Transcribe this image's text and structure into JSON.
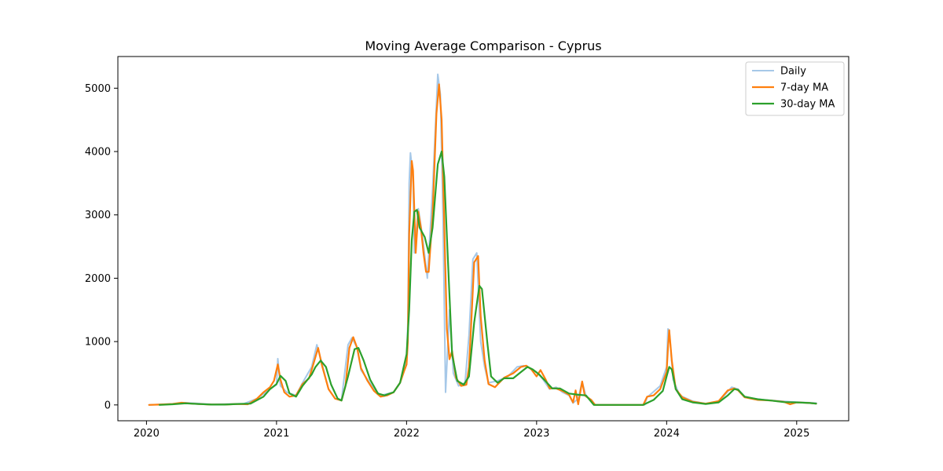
{
  "chart_data": {
    "type": "line",
    "title": "Moving Average Comparison - Cyprus",
    "xlabel": "",
    "ylabel": "",
    "x_ticks": [
      "2020",
      "2021",
      "2022",
      "2023",
      "2024",
      "2025"
    ],
    "y_ticks": [
      "0",
      "1000",
      "2000",
      "3000",
      "4000",
      "5000"
    ],
    "xlim": [
      2019.78,
      2025.4
    ],
    "ylim": [
      -250,
      5500
    ],
    "grid": false,
    "legend_position": "top-right",
    "series": [
      {
        "name": "Daily",
        "color": "#a6c8e8",
        "points": [
          [
            2020.02,
            0
          ],
          [
            2020.2,
            15
          ],
          [
            2020.3,
            35
          ],
          [
            2020.5,
            10
          ],
          [
            2020.75,
            20
          ],
          [
            2020.85,
            100
          ],
          [
            2020.95,
            250
          ],
          [
            2021.0,
            320
          ],
          [
            2021.01,
            730
          ],
          [
            2021.03,
            300
          ],
          [
            2021.08,
            200
          ],
          [
            2021.15,
            150
          ],
          [
            2021.2,
            350
          ],
          [
            2021.27,
            600
          ],
          [
            2021.31,
            950
          ],
          [
            2021.35,
            650
          ],
          [
            2021.4,
            250
          ],
          [
            2021.45,
            100
          ],
          [
            2021.5,
            80
          ],
          [
            2021.55,
            950
          ],
          [
            2021.58,
            1060
          ],
          [
            2021.62,
            900
          ],
          [
            2021.65,
            550
          ],
          [
            2021.7,
            400
          ],
          [
            2021.75,
            250
          ],
          [
            2021.8,
            150
          ],
          [
            2021.9,
            200
          ],
          [
            2021.95,
            350
          ],
          [
            2021.98,
            550
          ],
          [
            2022.0,
            700
          ],
          [
            2022.01,
            1300
          ],
          [
            2022.02,
            3500
          ],
          [
            2022.03,
            3980
          ],
          [
            2022.05,
            3600
          ],
          [
            2022.06,
            2400
          ],
          [
            2022.09,
            3100
          ],
          [
            2022.12,
            2700
          ],
          [
            2022.16,
            2000
          ],
          [
            2022.2,
            3400
          ],
          [
            2022.24,
            5220
          ],
          [
            2022.26,
            4900
          ],
          [
            2022.28,
            3000
          ],
          [
            2022.3,
            200
          ],
          [
            2022.33,
            1500
          ],
          [
            2022.36,
            500
          ],
          [
            2022.4,
            300
          ],
          [
            2022.45,
            350
          ],
          [
            2022.48,
            1100
          ],
          [
            2022.51,
            2300
          ],
          [
            2022.54,
            2400
          ],
          [
            2022.57,
            1000
          ],
          [
            2022.6,
            600
          ],
          [
            2022.63,
            350
          ],
          [
            2022.7,
            380
          ],
          [
            2022.78,
            450
          ],
          [
            2022.85,
            600
          ],
          [
            2022.9,
            620
          ],
          [
            2022.95,
            580
          ],
          [
            2023.0,
            520
          ],
          [
            2023.05,
            400
          ],
          [
            2023.1,
            250
          ],
          [
            2023.15,
            280
          ],
          [
            2023.2,
            200
          ],
          [
            2023.25,
            150
          ],
          [
            2023.28,
            30
          ],
          [
            2023.32,
            100
          ],
          [
            2023.35,
            370
          ],
          [
            2023.38,
            130
          ],
          [
            2023.42,
            80
          ],
          [
            2023.45,
            0
          ],
          [
            2023.6,
            0
          ],
          [
            2023.83,
            0
          ],
          [
            2023.85,
            120
          ],
          [
            2023.95,
            300
          ],
          [
            2024.0,
            600
          ],
          [
            2024.01,
            1200
          ],
          [
            2024.02,
            1180
          ],
          [
            2024.05,
            400
          ],
          [
            2024.1,
            150
          ],
          [
            2024.2,
            60
          ],
          [
            2024.3,
            20
          ],
          [
            2024.4,
            50
          ],
          [
            2024.5,
            280
          ],
          [
            2024.55,
            250
          ],
          [
            2024.6,
            120
          ],
          [
            2024.75,
            80
          ],
          [
            2024.95,
            50
          ],
          [
            2025.05,
            40
          ],
          [
            2025.15,
            30
          ]
        ]
      },
      {
        "name": "7-day MA",
        "color": "#ff7f0e",
        "points": [
          [
            2020.02,
            0
          ],
          [
            2020.1,
            5
          ],
          [
            2020.2,
            15
          ],
          [
            2020.27,
            35
          ],
          [
            2020.35,
            20
          ],
          [
            2020.5,
            5
          ],
          [
            2020.6,
            5
          ],
          [
            2020.7,
            15
          ],
          [
            2020.78,
            10
          ],
          [
            2020.85,
            100
          ],
          [
            2020.9,
            200
          ],
          [
            2020.95,
            280
          ],
          [
            2020.98,
            380
          ],
          [
            2021.01,
            640
          ],
          [
            2021.03,
            400
          ],
          [
            2021.06,
            200
          ],
          [
            2021.1,
            130
          ],
          [
            2021.15,
            150
          ],
          [
            2021.2,
            330
          ],
          [
            2021.25,
            420
          ],
          [
            2021.28,
            620
          ],
          [
            2021.32,
            900
          ],
          [
            2021.35,
            620
          ],
          [
            2021.4,
            250
          ],
          [
            2021.45,
            100
          ],
          [
            2021.5,
            70
          ],
          [
            2021.53,
            300
          ],
          [
            2021.56,
            900
          ],
          [
            2021.59,
            1070
          ],
          [
            2021.62,
            900
          ],
          [
            2021.65,
            580
          ],
          [
            2021.7,
            380
          ],
          [
            2021.75,
            220
          ],
          [
            2021.8,
            130
          ],
          [
            2021.85,
            150
          ],
          [
            2021.9,
            200
          ],
          [
            2021.95,
            350
          ],
          [
            2021.98,
            530
          ],
          [
            2022.0,
            640
          ],
          [
            2022.01,
            1000
          ],
          [
            2022.02,
            2700
          ],
          [
            2022.04,
            3850
          ],
          [
            2022.05,
            3700
          ],
          [
            2022.07,
            2400
          ],
          [
            2022.09,
            3050
          ],
          [
            2022.11,
            2800
          ],
          [
            2022.13,
            2400
          ],
          [
            2022.15,
            2100
          ],
          [
            2022.17,
            2100
          ],
          [
            2022.2,
            3000
          ],
          [
            2022.23,
            4600
          ],
          [
            2022.25,
            5060
          ],
          [
            2022.27,
            4500
          ],
          [
            2022.29,
            2800
          ],
          [
            2022.31,
            1200
          ],
          [
            2022.33,
            720
          ],
          [
            2022.35,
            850
          ],
          [
            2022.38,
            430
          ],
          [
            2022.42,
            300
          ],
          [
            2022.46,
            320
          ],
          [
            2022.48,
            600
          ],
          [
            2022.5,
            1400
          ],
          [
            2022.52,
            2250
          ],
          [
            2022.55,
            2350
          ],
          [
            2022.57,
            1400
          ],
          [
            2022.6,
            700
          ],
          [
            2022.63,
            330
          ],
          [
            2022.68,
            280
          ],
          [
            2022.75,
            430
          ],
          [
            2022.82,
            500
          ],
          [
            2022.88,
            600
          ],
          [
            2022.92,
            620
          ],
          [
            2022.96,
            560
          ],
          [
            2023.0,
            450
          ],
          [
            2023.03,
            550
          ],
          [
            2023.07,
            400
          ],
          [
            2023.1,
            260
          ],
          [
            2023.15,
            260
          ],
          [
            2023.2,
            220
          ],
          [
            2023.25,
            160
          ],
          [
            2023.28,
            40
          ],
          [
            2023.3,
            230
          ],
          [
            2023.32,
            10
          ],
          [
            2023.35,
            370
          ],
          [
            2023.37,
            150
          ],
          [
            2023.42,
            80
          ],
          [
            2023.45,
            0
          ],
          [
            2023.6,
            0
          ],
          [
            2023.82,
            0
          ],
          [
            2023.85,
            130
          ],
          [
            2023.9,
            150
          ],
          [
            2023.95,
            250
          ],
          [
            2024.0,
            520
          ],
          [
            2024.01,
            900
          ],
          [
            2024.02,
            1180
          ],
          [
            2024.04,
            700
          ],
          [
            2024.07,
            250
          ],
          [
            2024.12,
            120
          ],
          [
            2024.2,
            50
          ],
          [
            2024.3,
            20
          ],
          [
            2024.4,
            60
          ],
          [
            2024.47,
            230
          ],
          [
            2024.52,
            260
          ],
          [
            2024.55,
            230
          ],
          [
            2024.6,
            120
          ],
          [
            2024.7,
            80
          ],
          [
            2024.8,
            70
          ],
          [
            2024.9,
            50
          ],
          [
            2024.95,
            10
          ],
          [
            2025.0,
            40
          ],
          [
            2025.1,
            30
          ],
          [
            2025.15,
            20
          ]
        ]
      },
      {
        "name": "30-day MA",
        "color": "#2ca02c",
        "points": [
          [
            2020.1,
            0
          ],
          [
            2020.2,
            10
          ],
          [
            2020.3,
            25
          ],
          [
            2020.4,
            15
          ],
          [
            2020.5,
            5
          ],
          [
            2020.6,
            5
          ],
          [
            2020.7,
            15
          ],
          [
            2020.8,
            20
          ],
          [
            2020.9,
            130
          ],
          [
            2020.95,
            250
          ],
          [
            2021.0,
            330
          ],
          [
            2021.03,
            460
          ],
          [
            2021.07,
            380
          ],
          [
            2021.1,
            180
          ],
          [
            2021.15,
            130
          ],
          [
            2021.2,
            300
          ],
          [
            2021.27,
            480
          ],
          [
            2021.3,
            600
          ],
          [
            2021.34,
            700
          ],
          [
            2021.38,
            600
          ],
          [
            2021.42,
            320
          ],
          [
            2021.47,
            100
          ],
          [
            2021.5,
            70
          ],
          [
            2021.55,
            450
          ],
          [
            2021.6,
            880
          ],
          [
            2021.63,
            900
          ],
          [
            2021.67,
            700
          ],
          [
            2021.72,
            400
          ],
          [
            2021.78,
            180
          ],
          [
            2021.83,
            150
          ],
          [
            2021.9,
            200
          ],
          [
            2021.95,
            350
          ],
          [
            2022.0,
            800
          ],
          [
            2022.02,
            1500
          ],
          [
            2022.04,
            2600
          ],
          [
            2022.06,
            3050
          ],
          [
            2022.08,
            3080
          ],
          [
            2022.1,
            2800
          ],
          [
            2022.14,
            2650
          ],
          [
            2022.17,
            2400
          ],
          [
            2022.2,
            2800
          ],
          [
            2022.24,
            3800
          ],
          [
            2022.27,
            4000
          ],
          [
            2022.29,
            3600
          ],
          [
            2022.32,
            2200
          ],
          [
            2022.35,
            800
          ],
          [
            2022.39,
            380
          ],
          [
            2022.44,
            320
          ],
          [
            2022.48,
            450
          ],
          [
            2022.52,
            1300
          ],
          [
            2022.56,
            1880
          ],
          [
            2022.58,
            1830
          ],
          [
            2022.62,
            1000
          ],
          [
            2022.65,
            450
          ],
          [
            2022.7,
            350
          ],
          [
            2022.75,
            420
          ],
          [
            2022.82,
            420
          ],
          [
            2022.88,
            520
          ],
          [
            2022.93,
            600
          ],
          [
            2022.97,
            560
          ],
          [
            2023.02,
            480
          ],
          [
            2023.08,
            350
          ],
          [
            2023.12,
            260
          ],
          [
            2023.18,
            260
          ],
          [
            2023.25,
            180
          ],
          [
            2023.32,
            160
          ],
          [
            2023.38,
            150
          ],
          [
            2023.44,
            0
          ],
          [
            2023.6,
            0
          ],
          [
            2023.82,
            0
          ],
          [
            2023.9,
            80
          ],
          [
            2023.97,
            220
          ],
          [
            2024.0,
            450
          ],
          [
            2024.02,
            600
          ],
          [
            2024.04,
            560
          ],
          [
            2024.07,
            250
          ],
          [
            2024.12,
            90
          ],
          [
            2024.2,
            40
          ],
          [
            2024.3,
            15
          ],
          [
            2024.4,
            40
          ],
          [
            2024.47,
            150
          ],
          [
            2024.52,
            250
          ],
          [
            2024.55,
            240
          ],
          [
            2024.6,
            130
          ],
          [
            2024.7,
            90
          ],
          [
            2024.8,
            70
          ],
          [
            2024.9,
            45
          ],
          [
            2025.0,
            40
          ],
          [
            2025.1,
            30
          ],
          [
            2025.15,
            20
          ]
        ]
      }
    ]
  }
}
